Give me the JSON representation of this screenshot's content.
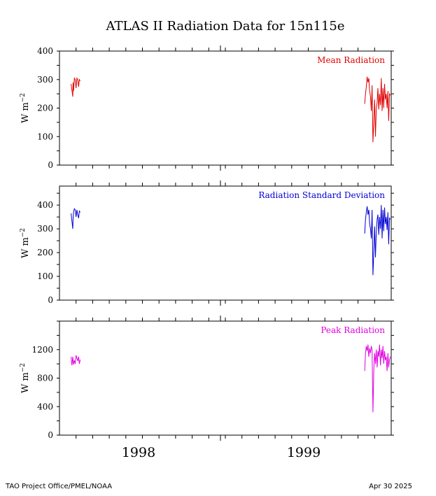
{
  "title": "ATLAS II Radiation Data for 15n115e",
  "footer": {
    "left": "TAO Project Office/PMEL/NOAA",
    "right": "Apr 30 2025"
  },
  "colors": {
    "mean": "#e00000",
    "stddev": "#0000d0",
    "peak": "#e000e0",
    "axis": "#000000"
  },
  "chart_data": [
    {
      "type": "line",
      "title": "Mean Radiation",
      "ylabel": "W m-2",
      "ylim": [
        0,
        400
      ],
      "yticks": [
        0,
        100,
        200,
        300,
        400
      ],
      "xlim": [
        1997.5,
        1999.5
      ],
      "xtick_labels": [
        "1998",
        "1999"
      ],
      "color_key": "mean",
      "series": [
        {
          "x": [
            1997.57,
            1997.58,
            1997.582,
            1997.585,
            1997.59,
            1997.595,
            1997.6,
            1997.605,
            1997.61,
            1997.615,
            1997.62,
            1997.625
          ],
          "y": [
            285,
            240,
            290,
            260,
            305,
            300,
            270,
            305,
            300,
            275,
            300,
            295
          ]
        },
        {
          "x": [
            1999.34,
            1999.345,
            1999.35,
            1999.355,
            1999.36,
            1999.365,
            1999.37,
            1999.375,
            1999.38,
            1999.385,
            1999.39,
            1999.395,
            1999.4,
            1999.405,
            1999.41,
            1999.415,
            1999.42,
            1999.425,
            1999.43,
            1999.435,
            1999.44,
            1999.445,
            1999.45,
            1999.455,
            1999.46,
            1999.465,
            1999.47,
            1999.475,
            1999.48,
            1999.485,
            1999.49,
            1999.495
          ],
          "y": [
            215,
            250,
            275,
            310,
            290,
            305,
            260,
            240,
            190,
            280,
            80,
            150,
            230,
            100,
            200,
            220,
            270,
            195,
            250,
            210,
            305,
            190,
            270,
            200,
            285,
            230,
            250,
            200,
            260,
            155,
            250,
            245
          ]
        }
      ]
    },
    {
      "type": "line",
      "title": "Radiation Standard Deviation",
      "ylabel": "W m-2",
      "ylim": [
        0,
        480
      ],
      "yticks": [
        0,
        100,
        200,
        300,
        400
      ],
      "xlim": [
        1997.5,
        1999.5
      ],
      "xtick_labels": [
        "1998",
        "1999"
      ],
      "color_key": "stddev",
      "series": [
        {
          "x": [
            1997.57,
            1997.58,
            1997.582,
            1997.585,
            1997.59,
            1997.595,
            1997.6,
            1997.605,
            1997.61,
            1997.615,
            1997.62,
            1997.625
          ],
          "y": [
            365,
            300,
            340,
            370,
            385,
            380,
            350,
            380,
            360,
            345,
            375,
            370
          ]
        },
        {
          "x": [
            1999.34,
            1999.345,
            1999.35,
            1999.355,
            1999.36,
            1999.365,
            1999.37,
            1999.375,
            1999.38,
            1999.385,
            1999.39,
            1999.395,
            1999.4,
            1999.405,
            1999.41,
            1999.415,
            1999.42,
            1999.425,
            1999.43,
            1999.435,
            1999.44,
            1999.445,
            1999.45,
            1999.455,
            1999.46,
            1999.465,
            1999.47,
            1999.475,
            1999.48,
            1999.485,
            1999.49,
            1999.495
          ],
          "y": [
            280,
            340,
            370,
            395,
            360,
            380,
            320,
            300,
            260,
            380,
            105,
            200,
            310,
            180,
            290,
            340,
            360,
            275,
            350,
            300,
            400,
            260,
            380,
            290,
            390,
            320,
            350,
            295,
            370,
            235,
            345,
            340
          ]
        }
      ]
    },
    {
      "type": "line",
      "title": "Peak Radiation",
      "ylabel": "W m-2",
      "ylim": [
        0,
        1600
      ],
      "yticks": [
        0,
        400,
        800,
        1200
      ],
      "xlim": [
        1997.5,
        1999.5
      ],
      "xtick_labels": [
        "1998",
        "1999"
      ],
      "color_key": "peak",
      "series": [
        {
          "x": [
            1997.57,
            1997.575,
            1997.58,
            1997.585,
            1997.59,
            1997.595,
            1997.6,
            1997.605,
            1997.61,
            1997.615,
            1997.62,
            1997.625
          ],
          "y": [
            1100,
            980,
            1100,
            990,
            1050,
            1000,
            1120,
            1080,
            1040,
            1100,
            1000,
            1060
          ]
        },
        {
          "x": [
            1999.34,
            1999.345,
            1999.35,
            1999.355,
            1999.36,
            1999.365,
            1999.37,
            1999.375,
            1999.38,
            1999.385,
            1999.39,
            1999.395,
            1999.4,
            1999.405,
            1999.41,
            1999.415,
            1999.42,
            1999.425,
            1999.43,
            1999.435,
            1999.44,
            1999.445,
            1999.45,
            1999.455,
            1999.46,
            1999.465,
            1999.47,
            1999.475,
            1999.48,
            1999.485,
            1999.49,
            1999.495
          ],
          "y": [
            900,
            1150,
            1250,
            1180,
            1270,
            1100,
            1220,
            1150,
            1250,
            1200,
            320,
            900,
            1150,
            1000,
            1200,
            950,
            1180,
            1100,
            1270,
            980,
            1200,
            1080,
            1250,
            1000,
            1180,
            1050,
            1100,
            900,
            1150,
            950,
            1060,
            1100
          ]
        }
      ]
    }
  ]
}
